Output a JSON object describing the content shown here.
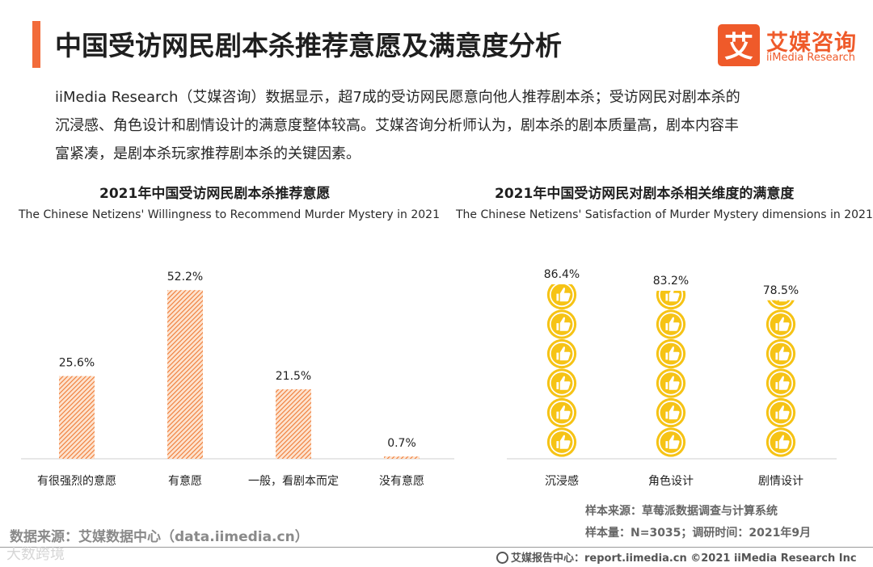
{
  "header": {
    "title": "中国受访网民剧本杀推荐意愿及满意度分析",
    "logo_cn": "艾媒咨询",
    "logo_en": "iiMedia Research",
    "logo_mark": "艾"
  },
  "intro": {
    "line1": "iiMedia Research（艾媒咨询）数据显示，超7成的受访网民愿意向他人推荐剧本杀；受访网民对剧本杀的",
    "line2": "沉浸感、角色设计和剧情设计的满意度整体较高。艾媒咨询分析师认为，剧本杀的剧本质量高，剧本内容丰",
    "line3": "富紧凑，是剧本杀玩家推荐剧本杀的关键因素。"
  },
  "chart_data": [
    {
      "type": "bar",
      "title": "2021年中国受访网民剧本杀推荐意愿",
      "subtitle": "The Chinese Netizens' Willingness to Recommend Murder Mystery in 2021",
      "categories": [
        "有很强烈的意愿",
        "有意愿",
        "一般，看剧本而定",
        "没有意愿"
      ],
      "values": [
        25.6,
        52.2,
        21.5,
        0.7
      ],
      "value_labels": [
        "25.6%",
        "52.2%",
        "21.5%",
        "0.7%"
      ],
      "unit": "%",
      "ylim": [
        0,
        60
      ],
      "grid": false,
      "bar_color": "#f08a4b",
      "bar_pattern": "diagonal-hatch"
    },
    {
      "type": "bar",
      "style": "pictograph",
      "icon": "thumbs-up-icon",
      "title": "2021年中国受访网民对剧本杀相关维度的满意度",
      "subtitle": "The Chinese Netizens' Satisfaction of Murder Mystery dimensions in 2021",
      "categories": [
        "沉浸感",
        "角色设计",
        "剧情设计"
      ],
      "values": [
        86.4,
        83.2,
        78.5
      ],
      "value_labels": [
        "86.4%",
        "83.2%",
        "78.5%"
      ],
      "unit": "%",
      "ylim": [
        0,
        100
      ],
      "grid": false,
      "icon_color": "#f5c518"
    }
  ],
  "footer": {
    "sample_source": "样本来源：草莓派数据调查与计算系统",
    "sample_size": "样本量：N=3035；调研时间：2021年9月",
    "data_source": "数据来源：艾媒数据中心（data.iimedia.cn）",
    "watermark": "大数跨境",
    "copyright": "艾媒报告中心：report.iimedia.cn ©2021 iiMedia Research Inc"
  }
}
